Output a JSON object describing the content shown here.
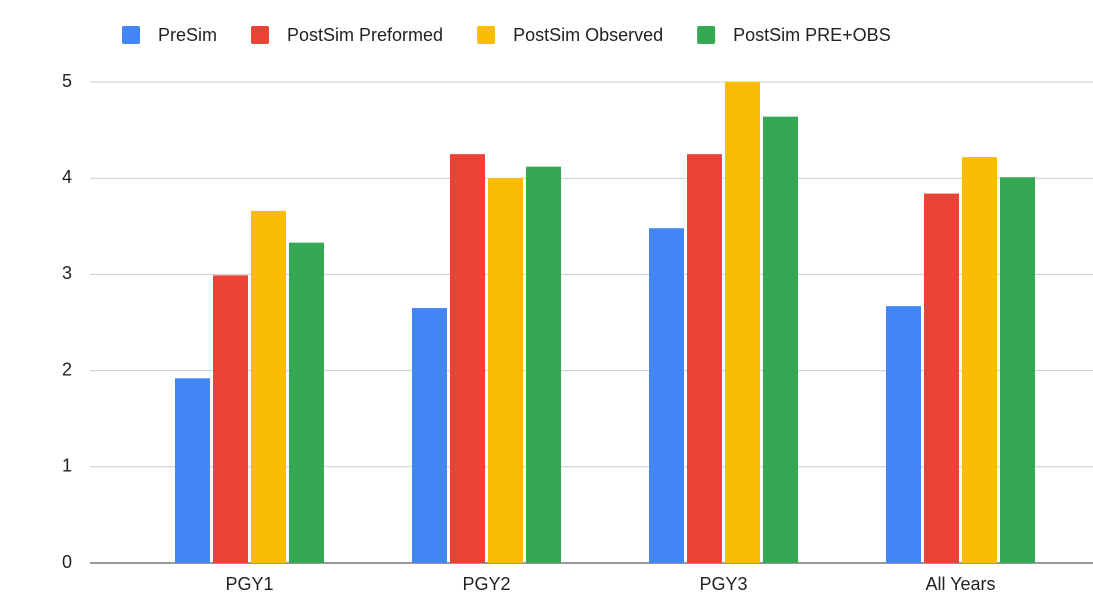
{
  "chart_data": {
    "type": "bar",
    "categories": [
      "PGY1",
      "PGY2",
      "PGY3",
      "All Years"
    ],
    "series": [
      {
        "name": "PreSim",
        "color": "#4285f4",
        "values": [
          1.92,
          2.65,
          3.48,
          2.67
        ]
      },
      {
        "name": "PostSim Preformed",
        "color": "#ea4335",
        "values": [
          2.99,
          4.25,
          4.25,
          3.84
        ]
      },
      {
        "name": "PostSim Observed",
        "color": "#fbbc04",
        "values": [
          3.66,
          4.0,
          5.0,
          4.22
        ]
      },
      {
        "name": "PostSim PRE+OBS",
        "color": "#34a853",
        "values": [
          3.33,
          4.12,
          4.64,
          4.01
        ]
      }
    ],
    "ylim": [
      0,
      5
    ],
    "yticks": [
      0,
      1,
      2,
      3,
      4,
      5
    ],
    "grid": true,
    "legend": "top"
  }
}
